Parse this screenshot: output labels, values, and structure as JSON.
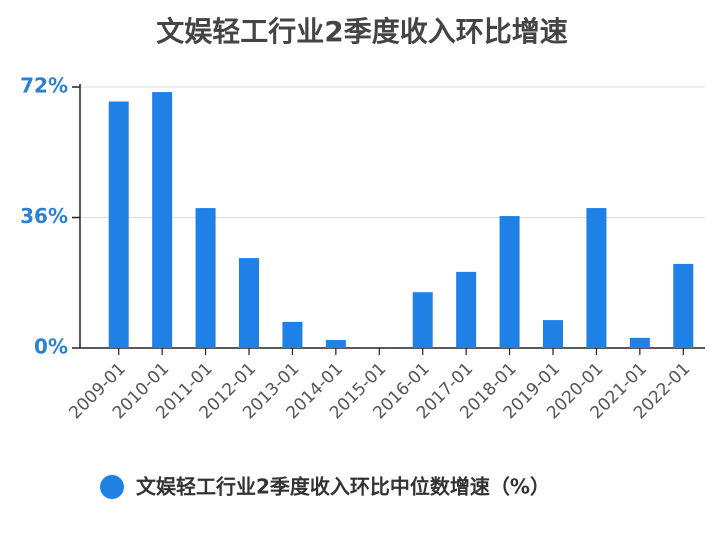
{
  "chart_data": {
    "type": "bar",
    "title": "文娱轻工行业2季度收入环比增速",
    "categories": [
      "2009-01",
      "2010-01",
      "2011-01",
      "2012-01",
      "2013-01",
      "2014-01",
      "2015-01",
      "2016-01",
      "2017-01",
      "2018-01",
      "2019-01",
      "2020-01",
      "2021-01",
      "2022-01"
    ],
    "series": [
      {
        "name": "文娱轻工行业2季度收入环比中位数增速（%）",
        "color": "#1f80e6",
        "values": [
          68,
          70.6,
          38.6,
          24.8,
          7.2,
          2.2,
          0,
          15.4,
          21,
          36.4,
          7.7,
          38.6,
          2.8,
          23.2
        ]
      }
    ],
    "ylim": [
      0,
      72
    ],
    "yticks": [
      {
        "value": 0,
        "label": "0%"
      },
      {
        "value": 36,
        "label": "36%"
      },
      {
        "value": 72,
        "label": "72%"
      }
    ],
    "grid": true
  }
}
